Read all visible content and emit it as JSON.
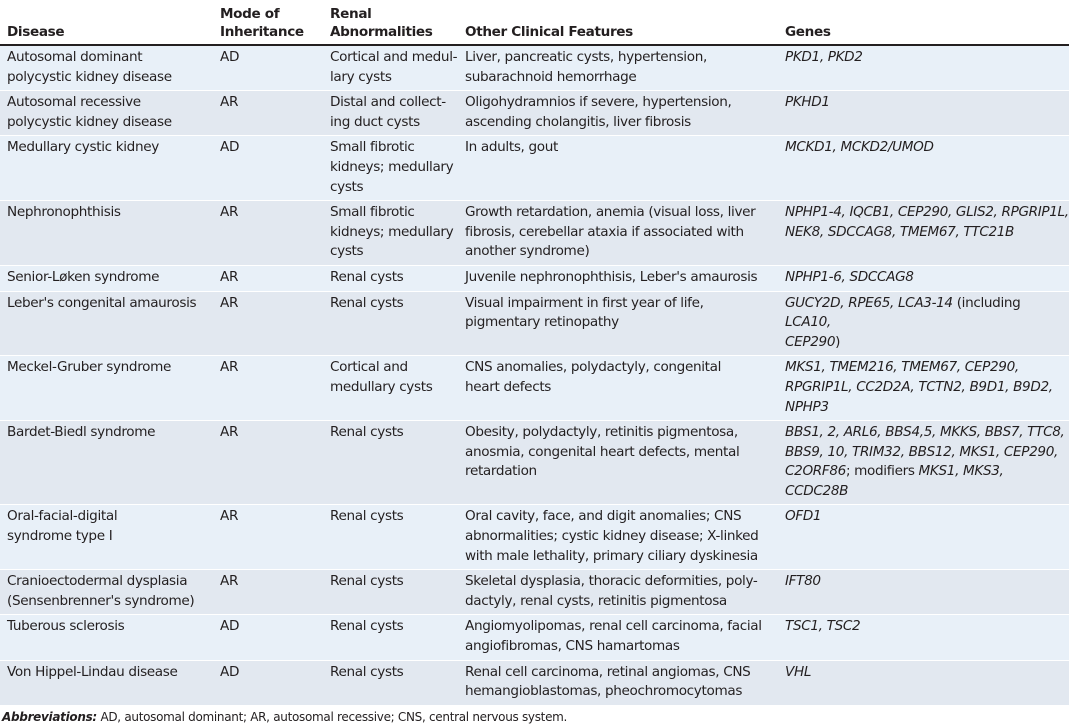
{
  "headers": [
    "Disease",
    "Mode of\nInheritance",
    "Renal\nAbnormalities",
    "Other Clinical Features",
    "Genes"
  ],
  "rows": [
    {
      "disease": "Autosomal dominant\npolycystic kidney disease",
      "mode": "AD",
      "renal": "Cortical and medul-\nlary cysts",
      "other": "Liver, pancreatic cysts, hypertension,\nsubarachnoid hemorrhage",
      "genes": [
        {
          "t": "PKD1, PKD2",
          "i": true
        }
      ]
    },
    {
      "disease": "Autosomal recessive\npolycystic kidney disease",
      "mode": "AR",
      "renal": "Distal and collect-\ning duct cysts",
      "other": "Oligohydramnios if severe, hypertension,\nascending cholangitis, liver fibrosis",
      "genes": [
        {
          "t": "PKHD1",
          "i": true
        }
      ]
    },
    {
      "disease": "Medullary cystic kidney",
      "mode": "AD",
      "renal": "Small fibrotic\nkidneys; medullary\ncysts",
      "other": "In adults, gout",
      "genes": [
        {
          "t": "MCKD1, MCKD2/UMOD",
          "i": true
        }
      ]
    },
    {
      "disease": "Nephronophthisis",
      "mode": "AR",
      "renal": "Small fibrotic\nkidneys; medullary\ncysts",
      "other": "Growth retardation, anemia (visual loss, liver\nfibrosis, cerebellar ataxia if associated with\nanother syndrome)",
      "genes": [
        {
          "t": "NPHP1-4, IQCB1, CEP290, GLIS2, RPGRIP1L,\nNEK8, SDCCAG8, TMEM67, TTC21B",
          "i": true
        }
      ]
    },
    {
      "disease": "Senior-Løken syndrome",
      "mode": "AR",
      "renal": "Renal cysts",
      "other": "Juvenile nephronophthisis, Leber's amaurosis",
      "genes": [
        {
          "t": "NPHP1-6, SDCCAG8",
          "i": true
        }
      ]
    },
    {
      "disease": "Leber's congenital amaurosis",
      "mode": "AR",
      "renal": "Renal cysts",
      "other": "Visual impairment in first year of life,\npigmentary retinopathy",
      "genes": [
        {
          "t": "GUCY2D, RPE65, LCA3-14",
          "i": true
        },
        {
          "t": " (including ",
          "i": false
        },
        {
          "t": "LCA10,\nCEP290",
          "i": true
        },
        {
          "t": ")",
          "i": false
        }
      ]
    },
    {
      "disease": "Meckel-Gruber syndrome",
      "mode": "AR",
      "renal": "Cortical and\nmedullary cysts",
      "other": "CNS anomalies, polydactyly, congenital\nheart defects",
      "genes": [
        {
          "t": "MKS1, TMEM216, TMEM67, CEP290,\nRPGRIP1L, CC2D2A, TCTN2, B9D1, B9D2,\nNPHP3",
          "i": true
        }
      ]
    },
    {
      "disease": "Bardet-Biedl syndrome",
      "mode": "AR",
      "renal": "Renal cysts",
      "other": "Obesity, polydactyly, retinitis pigmentosa,\nanosmia, congenital heart defects, mental\nretardation",
      "genes": [
        {
          "t": "BBS1, 2, ARL6, BBS4,5, MKKS, BBS7, TTC8,\nBBS9, 10, TRIM32, BBS12, MKS1, CEP290,\nC2ORF86",
          "i": true
        },
        {
          "t": "; modifiers ",
          "i": false
        },
        {
          "t": "MKS1, MKS3,\nCCDC28B",
          "i": true
        }
      ]
    },
    {
      "disease": "Oral-facial-digital\nsyndrome type I",
      "mode": "AR",
      "renal": "Renal cysts",
      "other": "Oral cavity, face, and digit anomalies; CNS\nabnormalities; cystic kidney disease; X-linked\nwith male lethality, primary ciliary dyskinesia",
      "genes": [
        {
          "t": "OFD1",
          "i": true
        }
      ]
    },
    {
      "disease": "Cranioectodermal dysplasia\n(Sensenbrenner's syndrome)",
      "mode": "AR",
      "renal": "Renal cysts",
      "other": "Skeletal dysplasia, thoracic deformities, poly-\ndactyly, renal cysts, retinitis pigmentosa",
      "genes": [
        {
          "t": "IFT80",
          "i": true
        }
      ]
    },
    {
      "disease": "Tuberous sclerosis",
      "mode": "AD",
      "renal": "Renal cysts",
      "other": "Angiomyolipomas, renal cell carcinoma, facial\nangiofibromas, CNS hamartomas",
      "genes": [
        {
          "t": "TSC1, TSC2",
          "i": true
        }
      ]
    },
    {
      "disease": "Von Hippel-Lindau disease",
      "mode": "AD",
      "renal": "Renal cysts",
      "other": "Renal cell carcinoma, retinal angiomas, CNS\nhemangioblastomas, pheochromocytomas",
      "genes": [
        {
          "t": "VHL",
          "i": true
        }
      ]
    }
  ],
  "footnote": {
    "label": "Abbreviations:",
    "text": " AD, autosomal dominant; AR, autosomal recessive; CNS, central nervous system."
  }
}
